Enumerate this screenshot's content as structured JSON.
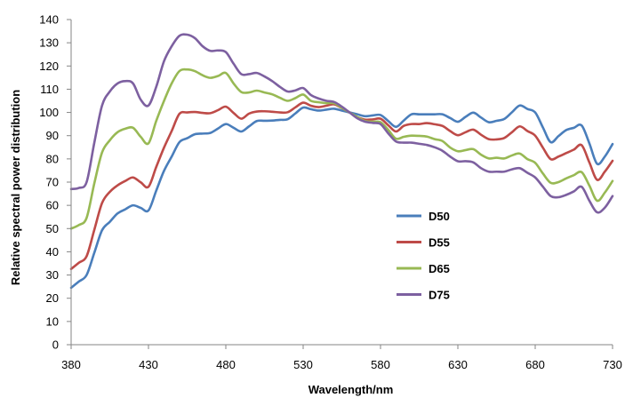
{
  "chart_data": {
    "type": "line",
    "title": "",
    "xlabel": "Wavelength/nm",
    "ylabel": "Relative spectral power distribution",
    "xlim": [
      380,
      730
    ],
    "ylim": [
      0,
      140
    ],
    "xticks": [
      "380",
      "430",
      "480",
      "530",
      "580",
      "630",
      "680",
      "730"
    ],
    "yticks": [
      "0",
      "10",
      "20",
      "30",
      "40",
      "50",
      "60",
      "70",
      "80",
      "90",
      "100",
      "110",
      "120",
      "130",
      "140"
    ],
    "grid": false,
    "legend": "center-right",
    "x": [
      380,
      385,
      390,
      395,
      400,
      405,
      410,
      415,
      420,
      425,
      430,
      435,
      440,
      445,
      450,
      455,
      460,
      465,
      470,
      475,
      480,
      485,
      490,
      495,
      500,
      505,
      510,
      515,
      520,
      525,
      530,
      535,
      540,
      545,
      550,
      555,
      560,
      565,
      570,
      575,
      580,
      585,
      590,
      595,
      600,
      605,
      610,
      615,
      620,
      625,
      630,
      635,
      640,
      645,
      650,
      655,
      660,
      665,
      670,
      675,
      680,
      685,
      690,
      695,
      700,
      705,
      710,
      715,
      720,
      725,
      730
    ],
    "series": [
      {
        "name": "D50",
        "color": "#4a7ebb",
        "values": [
          24.5,
          27.2,
          30.0,
          39.6,
          49.3,
          52.9,
          56.5,
          58.3,
          60.0,
          58.9,
          57.8,
          66.3,
          74.8,
          81.0,
          87.2,
          88.9,
          90.6,
          90.9,
          91.2,
          93.1,
          95.0,
          93.4,
          91.8,
          94.0,
          96.3,
          96.4,
          96.5,
          96.8,
          97.1,
          99.6,
          102.1,
          101.4,
          100.8,
          101.2,
          101.6,
          100.8,
          100.0,
          99.2,
          98.4,
          98.7,
          98.9,
          96.3,
          93.8,
          96.5,
          99.2,
          99.2,
          99.2,
          99.2,
          99.2,
          97.6,
          96.0,
          98.1,
          99.9,
          97.8,
          95.8,
          96.4,
          97.2,
          100.1,
          103.0,
          101.5,
          100.0,
          93.5,
          87.2,
          89.8,
          92.4,
          93.4,
          94.4,
          86.7,
          77.9,
          81.0,
          86.4
        ]
      },
      {
        "name": "D55",
        "color": "#be4b48",
        "values": [
          32.6,
          35.3,
          38.1,
          49.5,
          61.0,
          65.8,
          68.6,
          70.5,
          72.0,
          69.9,
          68.0,
          76.5,
          84.8,
          92.0,
          99.4,
          100.0,
          100.2,
          99.8,
          99.7,
          101.0,
          102.5,
          99.8,
          97.3,
          99.5,
          100.4,
          100.5,
          100.3,
          100.0,
          100.1,
          102.2,
          104.2,
          102.9,
          102.3,
          102.9,
          103.5,
          101.9,
          100.0,
          98.0,
          96.9,
          97.0,
          97.3,
          94.5,
          91.8,
          94.2,
          95.0,
          95.0,
          95.4,
          94.9,
          94.2,
          92.0,
          90.2,
          91.5,
          92.6,
          90.4,
          88.5,
          88.4,
          89.0,
          91.5,
          94.0,
          92.0,
          90.0,
          84.8,
          79.9,
          81.0,
          82.5,
          84.0,
          85.9,
          78.5,
          71.0,
          74.5,
          79.2
        ]
      },
      {
        "name": "D65",
        "color": "#98b954",
        "values": [
          50.0,
          51.5,
          54.6,
          69.5,
          82.8,
          88.0,
          91.5,
          93.0,
          93.4,
          89.5,
          86.7,
          96.3,
          104.9,
          112.5,
          117.8,
          118.5,
          117.8,
          116.0,
          114.9,
          115.7,
          117.0,
          112.5,
          108.8,
          108.6,
          109.4,
          108.6,
          107.8,
          106.3,
          105.0,
          106.2,
          107.7,
          105.0,
          104.4,
          104.0,
          104.0,
          102.0,
          100.0,
          98.0,
          96.3,
          96.0,
          95.8,
          92.5,
          88.7,
          89.5,
          90.0,
          89.9,
          89.6,
          88.5,
          87.7,
          84.9,
          83.3,
          83.8,
          84.2,
          81.8,
          80.2,
          80.5,
          80.2,
          81.5,
          82.3,
          79.9,
          78.3,
          73.7,
          69.7,
          70.0,
          71.6,
          73.0,
          74.3,
          68.5,
          62.0,
          65.5,
          70.5
        ]
      },
      {
        "name": "D75",
        "color": "#7d60a0",
        "values": [
          67.0,
          67.5,
          70.0,
          87.0,
          103.0,
          109.0,
          112.5,
          113.5,
          112.5,
          105.5,
          103.0,
          111.0,
          122.0,
          128.5,
          133.0,
          133.5,
          132.0,
          128.5,
          126.5,
          126.7,
          126.0,
          121.0,
          116.5,
          116.5,
          117.0,
          115.5,
          113.5,
          111.0,
          109.0,
          109.5,
          110.5,
          107.5,
          106.0,
          105.0,
          104.5,
          102.5,
          100.0,
          97.5,
          96.0,
          95.5,
          95.0,
          91.0,
          87.5,
          87.0,
          87.0,
          86.5,
          86.0,
          85.0,
          83.5,
          81.0,
          79.0,
          79.0,
          78.5,
          76.0,
          74.5,
          74.5,
          74.5,
          75.5,
          76.0,
          74.0,
          72.0,
          68.0,
          64.0,
          63.5,
          64.5,
          66.0,
          68.0,
          62.0,
          57.0,
          59.0,
          64.0
        ]
      }
    ]
  }
}
